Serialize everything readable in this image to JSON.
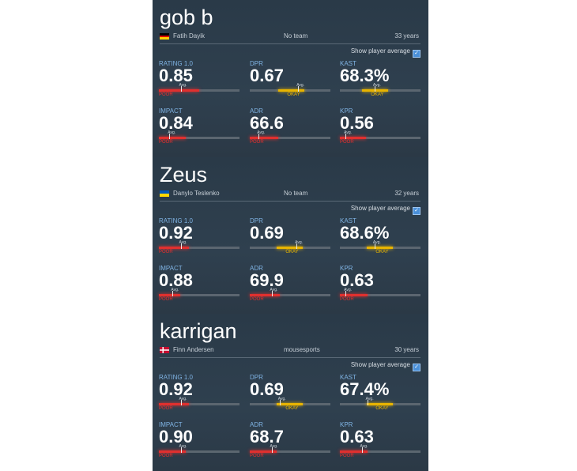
{
  "settings": {
    "show_avg_label": "Show player average",
    "avg_mark": "Avg."
  },
  "colors": {
    "poor": "#e0302f",
    "okay": "#e8b400"
  },
  "players": [
    {
      "nickname": "gob b",
      "real_name": "Fatih Dayik",
      "team": "No team",
      "age": "33 years",
      "flag": [
        "#000000",
        "#dd0000",
        "#ffce00"
      ],
      "stats": [
        {
          "label": "RATING 1.0",
          "value": "0.85",
          "rating": "POOR",
          "level": 0.5,
          "avg": 0.27
        },
        {
          "label": "DPR",
          "value": "0.67",
          "rating": "OKAY",
          "level": 0.68,
          "avg": 0.6
        },
        {
          "label": "KAST",
          "value": "68.3%",
          "rating": "OKAY",
          "level": 0.6,
          "avg": 0.43
        },
        {
          "label": "IMPACT",
          "value": "0.84",
          "rating": "POOR",
          "level": 0.33,
          "avg": 0.13
        },
        {
          "label": "ADR",
          "value": "66.6",
          "rating": "POOR",
          "level": 0.35,
          "avg": 0.11
        },
        {
          "label": "KPR",
          "value": "0.56",
          "rating": "POOR",
          "level": 0.32,
          "avg": 0.07
        }
      ]
    },
    {
      "nickname": "Zeus",
      "real_name": "Danylo Teslenko",
      "team": "No team",
      "age": "32 years",
      "flag": [
        "#0057b8",
        "#ffd700"
      ],
      "stats": [
        {
          "label": "RATING 1.0",
          "value": "0.92",
          "rating": "POOR",
          "level": 0.37,
          "avg": 0.27
        },
        {
          "label": "DPR",
          "value": "0.69",
          "rating": "OKAY",
          "level": 0.66,
          "avg": 0.58
        },
        {
          "label": "KAST",
          "value": "68.6%",
          "rating": "OKAY",
          "level": 0.66,
          "avg": 0.43
        },
        {
          "label": "IMPACT",
          "value": "0.88",
          "rating": "POOR",
          "level": 0.26,
          "avg": 0.17
        },
        {
          "label": "ADR",
          "value": "69.9",
          "rating": "POOR",
          "level": 0.37,
          "avg": 0.27
        },
        {
          "label": "KPR",
          "value": "0.63",
          "rating": "POOR",
          "level": 0.34,
          "avg": 0.07
        }
      ]
    },
    {
      "nickname": "karrigan",
      "real_name": "Finn Andersen",
      "team": "mousesports",
      "age": "30 years",
      "flag": [
        "#c60c30"
      ],
      "stats": [
        {
          "label": "RATING 1.0",
          "value": "0.92",
          "rating": "POOR",
          "level": 0.37,
          "avg": 0.27
        },
        {
          "label": "DPR",
          "value": "0.69",
          "rating": "OKAY",
          "level": 0.66,
          "avg": 0.37
        },
        {
          "label": "KAST",
          "value": "67.4%",
          "rating": "OKAY",
          "level": 0.66,
          "avg": 0.34
        },
        {
          "label": "IMPACT",
          "value": "0.90",
          "rating": "POOR",
          "level": 0.33,
          "avg": 0.27
        },
        {
          "label": "ADR",
          "value": "68.7",
          "rating": "POOR",
          "level": 0.33,
          "avg": 0.27
        },
        {
          "label": "KPR",
          "value": "0.63",
          "rating": "POOR",
          "level": 0.34,
          "avg": 0.27
        }
      ]
    }
  ]
}
